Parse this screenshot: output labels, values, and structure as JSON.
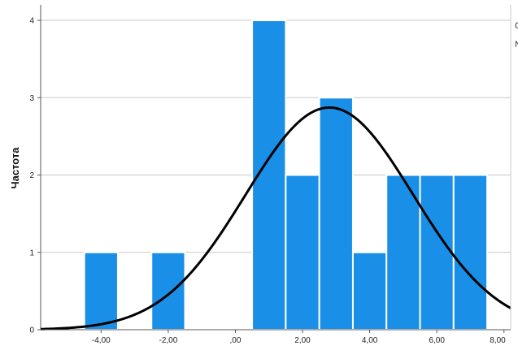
{
  "chart_data": {
    "type": "bar",
    "subtype": "histogram with normal curve",
    "title": "",
    "xlabel": "",
    "ylabel": "Частота",
    "xlim": [
      -5.8,
      8.2
    ],
    "ylim": [
      0,
      4.2
    ],
    "x_ticks": [
      {
        "value": -4,
        "label": "-4,00"
      },
      {
        "value": -2,
        "label": "-2,00"
      },
      {
        "value": 0,
        "label": ",00"
      },
      {
        "value": 2,
        "label": "2,00"
      },
      {
        "value": 4,
        "label": "4,00"
      },
      {
        "value": 6,
        "label": "6,00"
      },
      {
        "value": 8,
        "label": "8,00"
      }
    ],
    "y_ticks": [
      {
        "value": 0,
        "label": "0"
      },
      {
        "value": 1,
        "label": "1"
      },
      {
        "value": 2,
        "label": "2"
      },
      {
        "value": 3,
        "label": "3"
      },
      {
        "value": 4,
        "label": "4"
      }
    ],
    "bin_width": 1,
    "bins": [
      {
        "start": -4.5,
        "end": -3.5,
        "count": 1
      },
      {
        "start": -2.5,
        "end": -1.5,
        "count": 1
      },
      {
        "start": 0.5,
        "end": 1.5,
        "count": 4
      },
      {
        "start": 1.5,
        "end": 2.5,
        "count": 2
      },
      {
        "start": 2.5,
        "end": 3.5,
        "count": 3
      },
      {
        "start": 3.5,
        "end": 4.5,
        "count": 1
      },
      {
        "start": 4.5,
        "end": 5.5,
        "count": 2
      },
      {
        "start": 5.5,
        "end": 6.5,
        "count": 2
      },
      {
        "start": 6.5,
        "end": 7.5,
        "count": 2
      }
    ],
    "normal_curve": {
      "mean": 2.8,
      "sd": 2.5,
      "n": 18
    },
    "grid": "horizontal",
    "colors": {
      "bar": "#1a8fe8",
      "bar_edge": "#ffffff",
      "curve": "#000000",
      "grid": "#c8c8c8",
      "axis": "#555555"
    },
    "legend_fragments": [
      "С",
      "N"
    ]
  }
}
